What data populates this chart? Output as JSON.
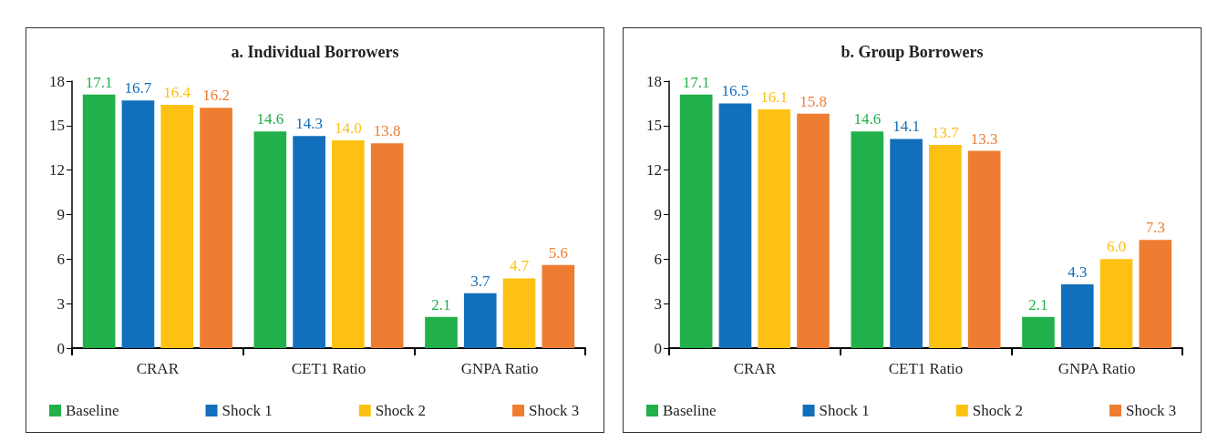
{
  "chart_data": [
    {
      "type": "bar",
      "title": "a. Individual Borrowers",
      "categories": [
        "CRAR",
        "CET1 Ratio",
        "GNPA Ratio"
      ],
      "ylim": [
        0,
        18
      ],
      "yticks": [
        0,
        3,
        6,
        9,
        12,
        15,
        18
      ],
      "grid": false,
      "legend": "bottom",
      "series": [
        {
          "name": "Baseline",
          "color": "#21b04b",
          "values": [
            17.1,
            14.6,
            2.1
          ],
          "value_labels": [
            "17.1",
            "14.6",
            "2.1"
          ]
        },
        {
          "name": "Shock 1",
          "color": "#126fbb",
          "values": [
            16.7,
            14.3,
            3.7
          ],
          "value_labels": [
            "16.7",
            "14.3",
            "3.7"
          ]
        },
        {
          "name": "Shock 2",
          "color": "#fcc113",
          "values": [
            16.4,
            14.0,
            4.7
          ],
          "value_labels": [
            "16.4",
            "14.0",
            "4.7"
          ]
        },
        {
          "name": "Shock 3",
          "color": "#ee7d31",
          "values": [
            16.2,
            13.8,
            5.6
          ],
          "value_labels": [
            "16.2",
            "13.8",
            "5.6"
          ]
        }
      ]
    },
    {
      "type": "bar",
      "title": "b. Group Borrowers",
      "categories": [
        "CRAR",
        "CET1 Ratio",
        "GNPA Ratio"
      ],
      "ylim": [
        0,
        18
      ],
      "yticks": [
        0,
        3,
        6,
        9,
        12,
        15,
        18
      ],
      "grid": false,
      "legend": "bottom",
      "series": [
        {
          "name": "Baseline",
          "color": "#21b04b",
          "values": [
            17.1,
            14.6,
            2.1
          ],
          "value_labels": [
            "17.1",
            "14.6",
            "2.1"
          ]
        },
        {
          "name": "Shock 1",
          "color": "#126fbb",
          "values": [
            16.5,
            14.1,
            4.3
          ],
          "value_labels": [
            "16.5",
            "14.1",
            "4.3"
          ]
        },
        {
          "name": "Shock 2",
          "color": "#fcc113",
          "values": [
            16.1,
            13.7,
            6.0
          ],
          "value_labels": [
            "16.1",
            "13.7",
            "6.0"
          ]
        },
        {
          "name": "Shock 3",
          "color": "#ee7d31",
          "values": [
            15.8,
            13.3,
            7.3
          ],
          "value_labels": [
            "15.8",
            "13.3",
            "7.3"
          ]
        }
      ]
    }
  ]
}
